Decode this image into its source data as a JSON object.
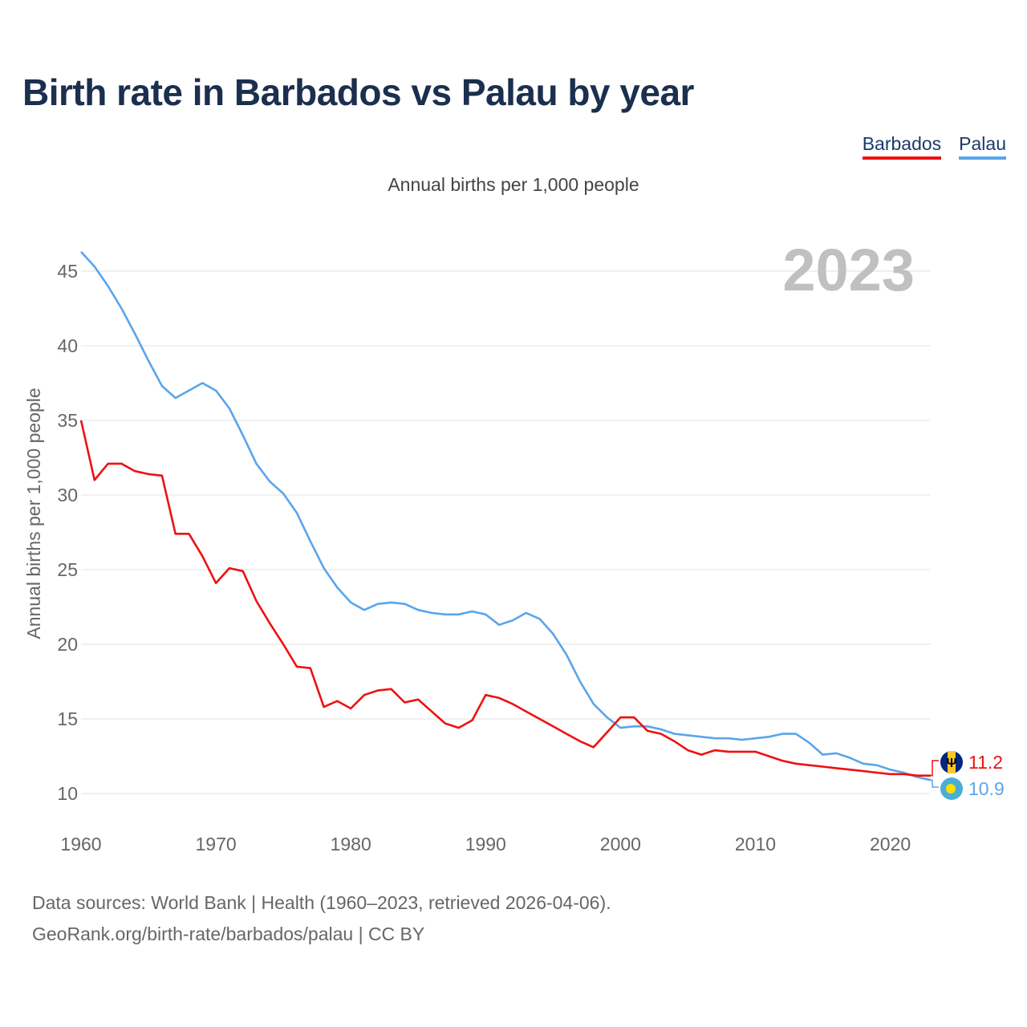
{
  "title": "Birth rate in Barbados vs Palau by year",
  "subtitle": "Annual births per 1,000 people",
  "legend": [
    {
      "name": "Barbados",
      "color": "#ee1111"
    },
    {
      "name": "Palau",
      "color": "#5aa5ea"
    }
  ],
  "year_watermark": "2023",
  "source_line1": "Data sources: World Bank | Health (1960–2023, retrieved 2026-04-06).",
  "source_line2": "GeoRank.org/birth-rate/barbados/palau | CC BY",
  "chart_data": {
    "type": "line",
    "title": "Birth rate in Barbados vs Palau by year",
    "xlabel": "",
    "ylabel": "Annual births per 1,000 people",
    "xlim": [
      1960,
      2023
    ],
    "ylim": [
      10,
      46.5
    ],
    "x_ticks": [
      1960,
      1970,
      1980,
      1990,
      2000,
      2010,
      2020
    ],
    "y_ticks": [
      10,
      15,
      20,
      25,
      30,
      35,
      40,
      45
    ],
    "grid": true,
    "legend_position": "top-right",
    "x": [
      1960,
      1961,
      1962,
      1963,
      1964,
      1965,
      1966,
      1967,
      1968,
      1969,
      1970,
      1971,
      1972,
      1973,
      1974,
      1975,
      1976,
      1977,
      1978,
      1979,
      1980,
      1981,
      1982,
      1983,
      1984,
      1985,
      1986,
      1987,
      1988,
      1989,
      1990,
      1991,
      1992,
      1993,
      1994,
      1995,
      1996,
      1997,
      1998,
      1999,
      2000,
      2001,
      2002,
      2003,
      2004,
      2005,
      2006,
      2007,
      2008,
      2009,
      2010,
      2011,
      2012,
      2013,
      2014,
      2015,
      2016,
      2017,
      2018,
      2019,
      2020,
      2021,
      2022,
      2023
    ],
    "series": [
      {
        "name": "Barbados",
        "color": "#ee1111",
        "end_label": "11.2",
        "flag": "barbados-flag-icon",
        "values": [
          35.0,
          31.0,
          32.1,
          32.1,
          31.6,
          31.4,
          31.3,
          27.4,
          27.4,
          25.9,
          24.1,
          25.1,
          24.9,
          22.9,
          21.4,
          20.0,
          18.5,
          18.4,
          15.8,
          16.2,
          15.7,
          16.6,
          16.9,
          17.0,
          16.1,
          16.3,
          15.5,
          14.7,
          14.4,
          14.9,
          16.6,
          16.4,
          16.0,
          15.5,
          15.0,
          14.5,
          14.0,
          13.5,
          13.1,
          14.1,
          15.1,
          15.1,
          14.2,
          14.0,
          13.5,
          12.9,
          12.6,
          12.9,
          12.8,
          12.8,
          12.8,
          12.5,
          12.2,
          12.0,
          11.9,
          11.8,
          11.7,
          11.6,
          11.5,
          11.4,
          11.3,
          11.3,
          11.2,
          11.2
        ]
      },
      {
        "name": "Palau",
        "color": "#5aa5ea",
        "end_label": "10.9",
        "flag": "palau-flag-icon",
        "values": [
          46.3,
          45.3,
          44.0,
          42.5,
          40.8,
          39.0,
          37.3,
          36.5,
          37.0,
          37.5,
          37.0,
          35.8,
          34.0,
          32.1,
          30.9,
          30.1,
          28.8,
          26.9,
          25.1,
          23.8,
          22.8,
          22.3,
          22.7,
          22.8,
          22.7,
          22.3,
          22.1,
          22.0,
          22.0,
          22.2,
          22.0,
          21.3,
          21.6,
          22.1,
          21.7,
          20.7,
          19.3,
          17.5,
          16.0,
          15.1,
          14.4,
          14.5,
          14.5,
          14.3,
          14.0,
          13.9,
          13.8,
          13.7,
          13.7,
          13.6,
          13.7,
          13.8,
          14.0,
          14.0,
          13.4,
          12.6,
          12.7,
          12.4,
          12.0,
          11.9,
          11.6,
          11.4,
          11.1,
          10.9
        ]
      }
    ]
  }
}
